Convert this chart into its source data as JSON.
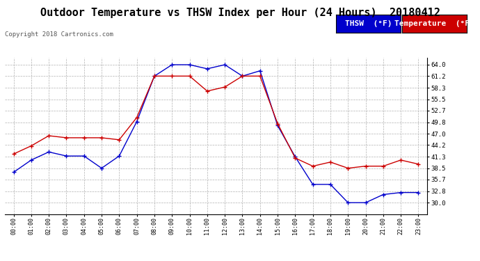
{
  "title": "Outdoor Temperature vs THSW Index per Hour (24 Hours)  20180412",
  "copyright": "Copyright 2018 Cartronics.com",
  "legend_thsw": "THSW  (°F)",
  "legend_temp": "Temperature  (°F)",
  "hours": [
    "00:00",
    "01:00",
    "02:00",
    "03:00",
    "04:00",
    "05:00",
    "06:00",
    "07:00",
    "08:00",
    "09:00",
    "10:00",
    "11:00",
    "12:00",
    "13:00",
    "14:00",
    "15:00",
    "16:00",
    "17:00",
    "18:00",
    "19:00",
    "20:00",
    "21:00",
    "22:00",
    "23:00"
  ],
  "thsw": [
    37.5,
    40.5,
    42.5,
    41.5,
    41.5,
    38.5,
    41.5,
    50.0,
    61.2,
    64.0,
    64.0,
    63.0,
    64.0,
    61.2,
    62.5,
    49.0,
    41.3,
    34.5,
    34.5,
    30.0,
    30.0,
    32.0,
    32.5,
    32.5
  ],
  "temperature": [
    42.0,
    44.0,
    46.5,
    46.0,
    46.0,
    46.0,
    45.5,
    51.0,
    61.2,
    61.2,
    61.2,
    57.5,
    58.5,
    61.2,
    61.2,
    49.5,
    41.0,
    39.0,
    40.0,
    38.5,
    39.0,
    39.0,
    40.5,
    39.5
  ],
  "ylim_min": 27.2,
  "ylim_max": 65.8,
  "yticks": [
    30.0,
    32.8,
    35.7,
    38.5,
    41.3,
    44.2,
    47.0,
    49.8,
    52.7,
    55.5,
    58.3,
    61.2,
    64.0
  ],
  "thsw_color": "#0000cc",
  "temp_color": "#cc0000",
  "bg_color": "#ffffff",
  "plot_bg_color": "#ffffff",
  "grid_color": "#b0b0b0",
  "title_fontsize": 11,
  "copyright_fontsize": 6.5,
  "legend_fontsize": 8
}
